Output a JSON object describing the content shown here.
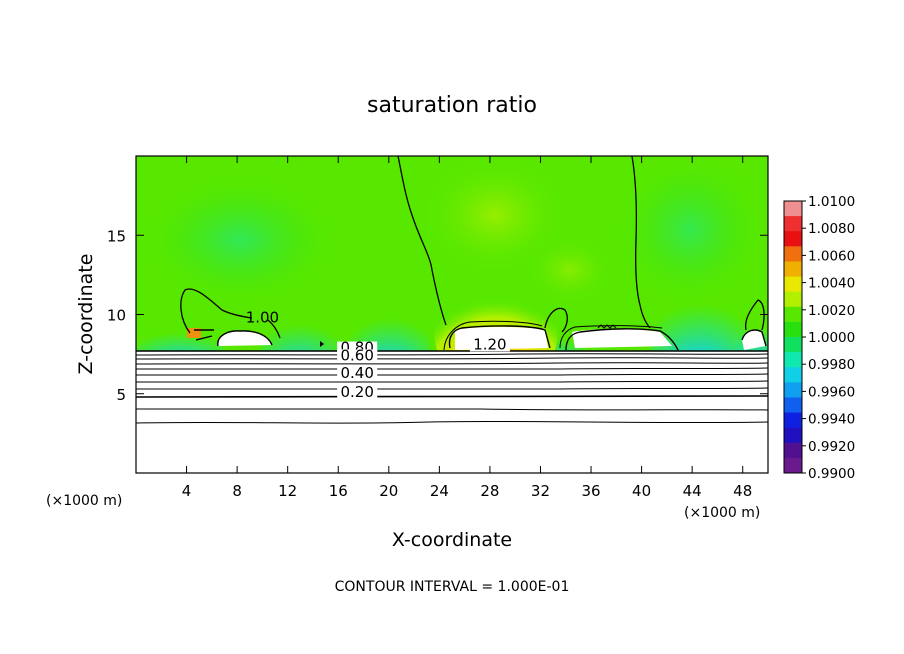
{
  "chart_data": {
    "type": "heatmap",
    "title": "saturation ratio",
    "xlabel": "X-coordinate",
    "ylabel": "Z-coordinate",
    "x_unit_left": "(×1000 m)",
    "x_unit_right": "(×1000 m)",
    "xlim": [
      0,
      50
    ],
    "ylim": [
      0,
      20
    ],
    "x_ticks": [
      4,
      8,
      12,
      16,
      20,
      24,
      28,
      32,
      36,
      40,
      44,
      48
    ],
    "y_ticks": [
      5,
      10,
      15
    ],
    "colorbar": {
      "min": 0.99,
      "max": 1.01,
      "labels": [
        "1.0100",
        "1.0080",
        "1.0060",
        "1.0040",
        "1.0020",
        "1.0000",
        "0.9980",
        "0.9960",
        "0.9940",
        "0.9920",
        "0.9900"
      ],
      "colors": [
        "#f08f8f",
        "#f03030",
        "#e81010",
        "#f07010",
        "#f0b000",
        "#e8e800",
        "#b0f000",
        "#58e800",
        "#28e010",
        "#10e060",
        "#10e8b0",
        "#10d0e8",
        "#10a0f0",
        "#1060f0",
        "#1020e0",
        "#2010c0",
        "#501090",
        "#6a1a8c"
      ]
    },
    "contour_labels": [
      {
        "text": "1.00",
        "x": 10,
        "y": 9.5
      },
      {
        "text": "1.20",
        "x": 28,
        "y": 7.8
      },
      {
        "text": "0.80",
        "x": 17.5,
        "y": 7.6
      },
      {
        "text": "0.60",
        "x": 17.5,
        "y": 7.1
      },
      {
        "text": "0.40",
        "x": 17.5,
        "y": 6.0
      },
      {
        "text": "0.20",
        "x": 17.5,
        "y": 4.8
      }
    ],
    "footnote": "CONTOUR INTERVAL = 1.000E-01",
    "grid": false
  }
}
